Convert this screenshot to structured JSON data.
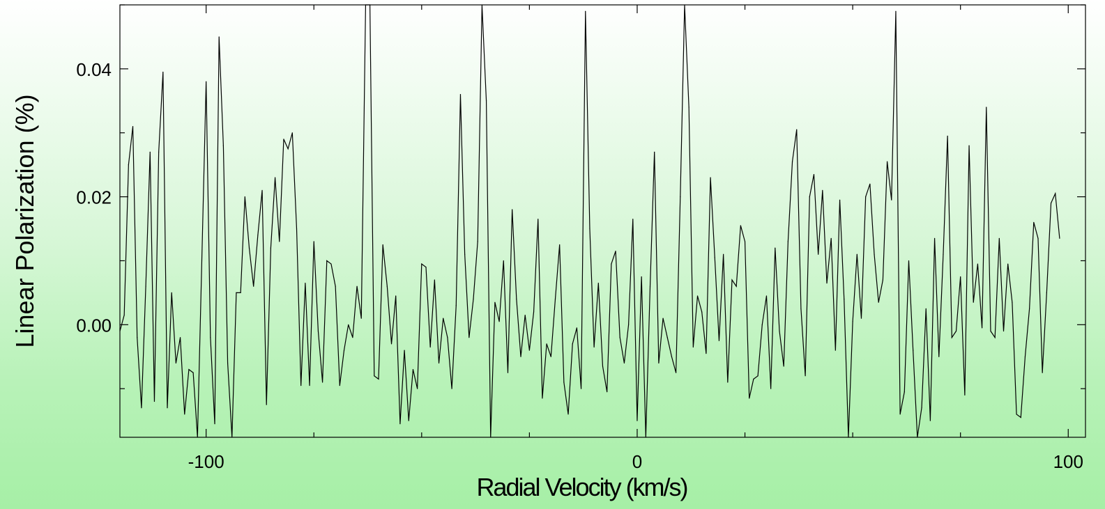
{
  "chart_data": {
    "type": "line",
    "title": "",
    "xlabel": "Radial Velocity (km/s)",
    "ylabel": "Linear Polarization (%)",
    "xlim": [
      -120,
      104
    ],
    "ylim": [
      -0.0176,
      0.05
    ],
    "x_ticks": [
      {
        "value": -100,
        "label": "-100"
      },
      {
        "value": 0,
        "label": "0"
      },
      {
        "value": 100,
        "label": "100"
      }
    ],
    "y_ticks": [
      {
        "value": 0.0,
        "label": "0.00"
      },
      {
        "value": 0.02,
        "label": "0.02"
      },
      {
        "value": 0.04,
        "label": "0.04"
      }
    ],
    "x_minor_step": 25,
    "y_minor_step": 0.01,
    "grid": false,
    "line_color": "#000000",
    "series": [
      {
        "name": "",
        "x_start": -120,
        "x_step": 1,
        "values": [
          -0.001,
          0.0015,
          0.025,
          0.031,
          -0.002,
          -0.013,
          0.006,
          0.027,
          -0.012,
          0.027,
          0.0395,
          -0.013,
          0.005,
          -0.006,
          -0.002,
          -0.014,
          -0.007,
          -0.0075,
          -0.0176,
          0.01,
          0.038,
          -0.002,
          -0.0155,
          0.045,
          0.028,
          -0.006,
          -0.0176,
          0.005,
          0.005,
          0.02,
          0.012,
          0.006,
          0.014,
          0.021,
          -0.0125,
          0.012,
          0.023,
          0.013,
          0.029,
          0.0275,
          0.03,
          0.015,
          -0.0095,
          0.0065,
          -0.0095,
          0.013,
          -0.001,
          -0.009,
          0.01,
          0.0095,
          0.006,
          -0.0095,
          -0.004,
          0.0,
          -0.002,
          0.006,
          0.001,
          0.05,
          0.05,
          -0.008,
          -0.0085,
          0.0125,
          0.006,
          -0.003,
          0.0045,
          -0.0155,
          -0.004,
          -0.015,
          -0.007,
          -0.01,
          0.0095,
          0.009,
          -0.0035,
          0.007,
          -0.006,
          0.001,
          -0.002,
          -0.01,
          0.003,
          0.036,
          0.011,
          -0.002,
          0.004,
          0.013,
          0.05,
          0.035,
          -0.0176,
          0.0035,
          0.0005,
          0.01,
          -0.0075,
          0.018,
          0.004,
          -0.005,
          0.0015,
          -0.004,
          0.002,
          0.0165,
          -0.0115,
          -0.003,
          -0.005,
          0.004,
          0.0125,
          -0.009,
          -0.014,
          -0.003,
          -0.0005,
          -0.01,
          0.049,
          0.015,
          -0.0035,
          0.0065,
          -0.0065,
          -0.0105,
          0.0095,
          0.0115,
          -0.002,
          -0.006,
          0.0,
          0.0165,
          -0.015,
          0.0075,
          -0.0176,
          0.006,
          0.027,
          -0.006,
          0.001,
          -0.002,
          -0.005,
          -0.0075,
          0.02,
          0.05,
          0.034,
          -0.0035,
          0.0045,
          0.002,
          -0.0045,
          0.023,
          0.0105,
          -0.0025,
          0.011,
          -0.009,
          0.007,
          0.006,
          0.0155,
          0.013,
          -0.0115,
          -0.0085,
          -0.008,
          0.0,
          0.0045,
          -0.01,
          0.012,
          -0.001,
          -0.0065,
          0.013,
          0.0255,
          0.0305,
          0.0025,
          -0.008,
          0.02,
          0.0235,
          0.011,
          0.021,
          0.0065,
          0.0135,
          -0.004,
          0.0195,
          0.004,
          -0.0176,
          0.0005,
          0.011,
          0.001,
          0.02,
          0.022,
          0.011,
          0.0035,
          0.007,
          0.0255,
          0.0195,
          0.049,
          -0.014,
          -0.0105,
          0.01,
          -0.004,
          -0.0176,
          -0.013,
          0.0025,
          -0.015,
          0.0135,
          -0.005,
          0.011,
          0.0295,
          -0.002,
          -0.001,
          0.0075,
          -0.011,
          0.028,
          0.0035,
          0.0095,
          -0.0005,
          0.034,
          -0.001,
          -0.002,
          0.0135,
          -0.001,
          0.0095,
          0.0035,
          -0.014,
          -0.0145,
          -0.005,
          0.0025,
          0.016,
          0.0135,
          -0.0075,
          0.005,
          0.019,
          0.0205,
          0.0135
        ]
      }
    ]
  }
}
